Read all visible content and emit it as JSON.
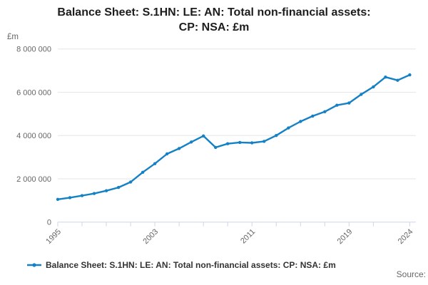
{
  "title": {
    "lines": [
      "Balance Sheet: S.1HN: LE: AN: Total non-financial assets:",
      "CP: NSA: £m"
    ]
  },
  "y_axis": {
    "unit_label": "£m",
    "ticks": [
      {
        "value": 0,
        "label": "0"
      },
      {
        "value": 2000000,
        "label": "2 000 000"
      },
      {
        "value": 4000000,
        "label": "4 000 000"
      },
      {
        "value": 6000000,
        "label": "6 000 000"
      },
      {
        "value": 8000000,
        "label": "8 000 000"
      }
    ]
  },
  "x_axis": {
    "minor_tick_years": [
      1995,
      1997,
      1999,
      2001,
      2003,
      2005,
      2007,
      2009,
      2011,
      2013,
      2015,
      2017,
      2019,
      2021,
      2024
    ],
    "labeled_ticks": [
      {
        "year": 1995,
        "label": "1995"
      },
      {
        "year": 2003,
        "label": "2003"
      },
      {
        "year": 2011,
        "label": "2011"
      },
      {
        "year": 2019,
        "label": "2019"
      },
      {
        "year": 2024,
        "label": "2024"
      }
    ]
  },
  "legend": {
    "label": "Balance Sheet: S.1HN: LE: AN: Total non-financial assets: CP: NSA: £m"
  },
  "source": {
    "label": "Source:"
  },
  "colors": {
    "series": "#1581c5",
    "grid": "#e6e6e6",
    "axis": "#ccd6eb",
    "tick_text": "#666666",
    "title_text": "#1d1d1d",
    "legend_text": "#333333"
  },
  "chart_data": {
    "type": "line",
    "title": "Balance Sheet: S.1HN: LE: AN: Total non-financial assets: CP: NSA: £m",
    "series_name": "Balance Sheet: S.1HN: LE: AN: Total non-financial assets: CP: NSA: £m",
    "ylabel": "£m",
    "ylim": [
      0,
      8000000
    ],
    "xlim": [
      1995,
      2024
    ],
    "grid": "horizontal",
    "legend_position": "bottom",
    "markers": true,
    "x": [
      1995,
      1996,
      1997,
      1998,
      1999,
      2000,
      2001,
      2002,
      2003,
      2004,
      2005,
      2006,
      2007,
      2008,
      2009,
      2010,
      2011,
      2012,
      2013,
      2014,
      2015,
      2016,
      2017,
      2018,
      2019,
      2020,
      2021,
      2022,
      2023,
      2024
    ],
    "values": [
      1050000,
      1130000,
      1220000,
      1320000,
      1450000,
      1600000,
      1850000,
      2300000,
      2700000,
      3150000,
      3400000,
      3700000,
      3980000,
      3450000,
      3620000,
      3680000,
      3660000,
      3730000,
      4000000,
      4350000,
      4650000,
      4900000,
      5100000,
      5400000,
      5500000,
      5900000,
      6250000,
      6700000,
      6550000,
      6800000
    ]
  }
}
